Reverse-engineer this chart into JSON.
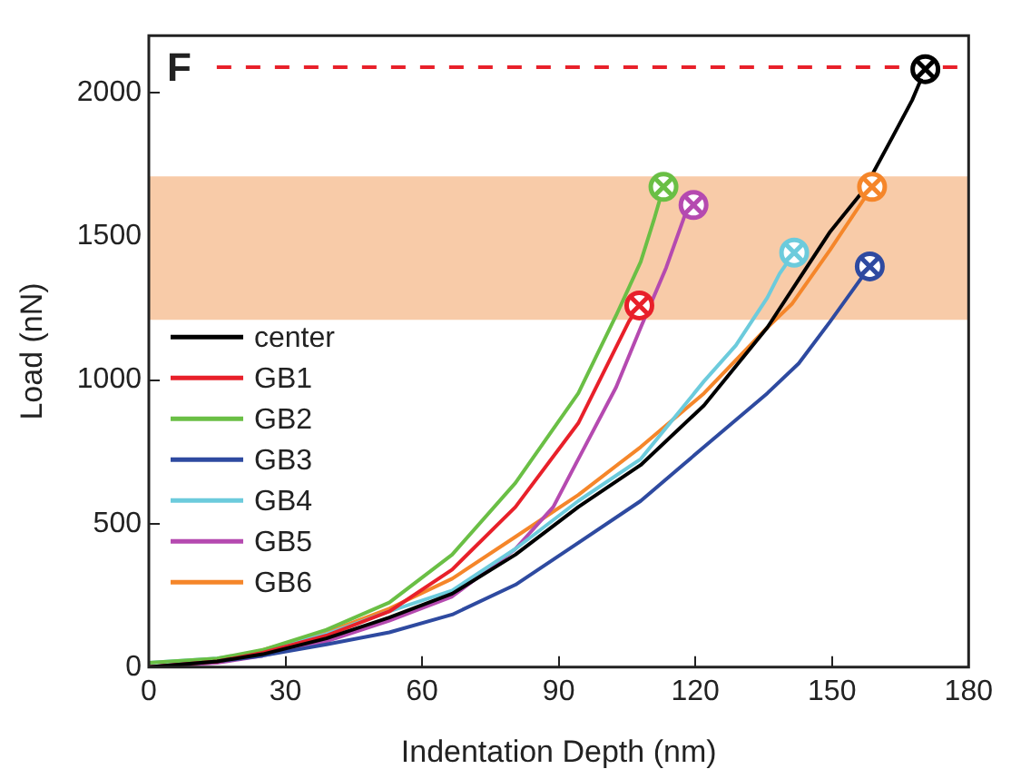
{
  "chart_data": {
    "type": "line",
    "xlabel": "Indentation Depth (nm)",
    "ylabel": "Load (nN)",
    "annotations": [
      "F"
    ],
    "xlim": [
      0,
      180
    ],
    "xticks": [
      0,
      30,
      60,
      90,
      120,
      150,
      180
    ],
    "ylim": [
      0,
      2200
    ],
    "yticks": [
      0,
      500,
      1000,
      1500,
      2000
    ],
    "grid": false,
    "legend": "left",
    "line_style": "solid",
    "ref_lines": [
      {
        "axis": "y",
        "value": 2090,
        "color": "#e8202a",
        "line_style": "dashed"
      }
    ],
    "bands": [
      {
        "axis": "y",
        "from": 1210,
        "to": 1710,
        "color": "#f8cba8"
      }
    ],
    "series": [
      {
        "name": "center",
        "color": "#000000",
        "x": [
          0,
          15,
          25,
          39,
          52.8,
          66.6,
          80.5,
          94.3,
          108,
          121.9,
          135.8,
          142.7,
          149.6,
          157,
          163.4,
          167.6,
          170.5
        ],
        "values": [
          0,
          20,
          45,
          100,
          173,
          256,
          392,
          558,
          704,
          912,
          1183,
          1350,
          1517,
          1662,
          1850,
          1975,
          2083
        ]
      },
      {
        "name": "GB1",
        "color": "#e8202a",
        "x": [
          0,
          15,
          25,
          39,
          52.8,
          66.6,
          80.5,
          94.3,
          105.4,
          107.7
        ],
        "values": [
          0,
          20,
          50,
          110,
          194,
          340,
          558,
          850,
          1204,
          1260
        ]
      },
      {
        "name": "GB2",
        "color": "#6abf45",
        "x": [
          0,
          15,
          25,
          39,
          52.8,
          66.6,
          80.5,
          94.3,
          102.6,
          108,
          110.9,
          113
        ],
        "values": [
          15,
          30,
          60,
          130,
          225,
          392,
          642,
          954,
          1225,
          1412,
          1558,
          1673
        ]
      },
      {
        "name": "GB3",
        "color": "#2e4aa0",
        "x": [
          0,
          15,
          25,
          39,
          52.8,
          66.6,
          80.5,
          94.3,
          108,
          121.9,
          135.8,
          142.7,
          149.6,
          158.3
        ],
        "values": [
          0,
          20,
          40,
          79,
          121,
          183,
          287,
          433,
          579,
          767,
          954,
          1058,
          1204,
          1396
        ]
      },
      {
        "name": "GB4",
        "color": "#6ccbdc",
        "x": [
          0,
          15,
          25,
          39,
          52.8,
          66.6,
          80.5,
          94.3,
          108,
          121.9,
          128.9,
          135.8,
          138.5,
          141.7
        ],
        "values": [
          15,
          30,
          55,
          115,
          194,
          267,
          412,
          579,
          725,
          996,
          1121,
          1287,
          1371,
          1444
        ]
      },
      {
        "name": "GB5",
        "color": "#b54ab0",
        "x": [
          0,
          15,
          25,
          39,
          52.8,
          66.6,
          80.5,
          88.8,
          94.3,
          102.6,
          108,
          113.6,
          117.8,
          119.6
        ],
        "values": [
          0,
          15,
          40,
          90,
          162,
          246,
          412,
          558,
          725,
          975,
          1183,
          1392,
          1579,
          1610
        ]
      },
      {
        "name": "GB6",
        "color": "#f5862a",
        "x": [
          25,
          39,
          52.8,
          66.6,
          80.5,
          94.3,
          108,
          121.9,
          135.8,
          141.3,
          149.6,
          158.8
        ],
        "values": [
          60,
          121,
          204,
          308,
          454,
          600,
          767,
          954,
          1183,
          1267,
          1454,
          1673
        ]
      }
    ]
  }
}
